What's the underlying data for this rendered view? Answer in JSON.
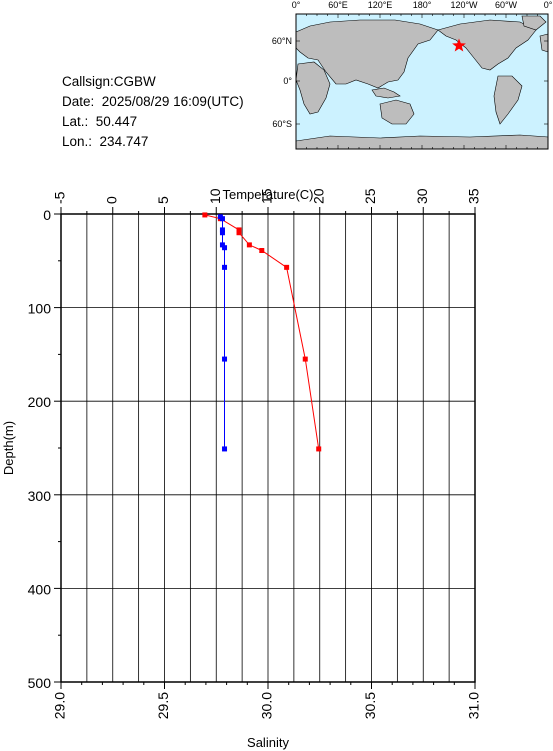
{
  "station": {
    "callsign_label": "Callsign:",
    "callsign": "CGBW",
    "date_label": "Date:",
    "date": "2025/08/29 16:09(UTC)",
    "lat_label": "Lat.:",
    "lat": "50.447",
    "lon_label": "Lon.:",
    "lon": "234.747"
  },
  "map": {
    "top_labels": [
      "0°",
      "60°E",
      "120°E",
      "180°",
      "120°W",
      "60°W",
      "0°"
    ],
    "left_labels": [
      "60°N",
      "0°",
      "60°S"
    ],
    "ocean_color": "#ccf2ff",
    "land_color": "#bdbdbd",
    "marker": "red-star",
    "marker_color": "#ff0000"
  },
  "chart_data": {
    "type": "line",
    "y_axis": {
      "label": "Depth(m)",
      "range": [
        0,
        500
      ],
      "ticks": [
        0,
        100,
        200,
        300,
        400,
        500
      ],
      "inverted": true
    },
    "x_axis_top": {
      "label": "Temperature(C)",
      "range": [
        -5,
        35
      ],
      "ticks": [
        -5,
        0,
        5,
        10,
        15,
        20,
        25,
        30,
        35
      ]
    },
    "x_axis_bottom": {
      "label": "Salinity",
      "range": [
        29.0,
        31.0
      ],
      "ticks": [
        "29.0",
        "29.5",
        "30.0",
        "30.5",
        "31.0"
      ]
    },
    "grid": true,
    "series": [
      {
        "axis": "temperature",
        "color": "#ff0000",
        "depth": [
          1,
          5,
          17,
          20,
          33,
          39,
          57,
          155,
          251
        ],
        "values": [
          8.9,
          10.4,
          12.2,
          12.2,
          13.2,
          14.4,
          16.8,
          18.6,
          19.9
        ]
      },
      {
        "axis": "salinity",
        "color": "#0000ff",
        "depth": [
          3,
          5,
          17,
          20,
          33,
          36,
          57,
          155,
          251
        ],
        "values": [
          29.77,
          29.78,
          29.78,
          29.78,
          29.78,
          29.79,
          29.79,
          29.79,
          29.79
        ]
      }
    ]
  }
}
